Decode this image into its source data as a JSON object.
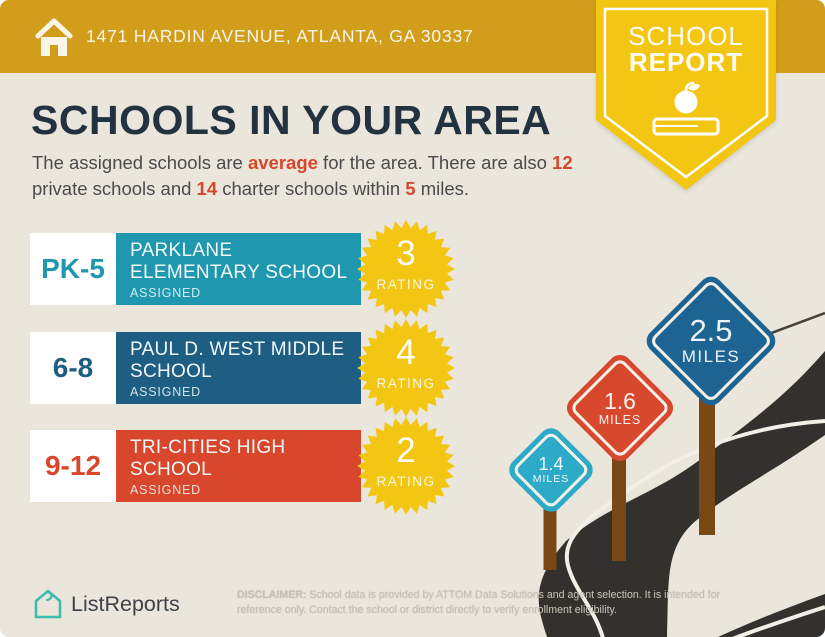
{
  "header": {
    "address": "1471 HARDIN AVENUE, ATLANTA, GA 30337"
  },
  "badge": {
    "line1": "SCHOOL",
    "line2": "REPORT"
  },
  "main": {
    "title": "SCHOOLS IN YOUR AREA",
    "intro": {
      "s1": "The assigned schools are ",
      "s2": "average",
      "s3": " for the area. There are also ",
      "s4": "12",
      "s5": " private schools and ",
      "s6": "14",
      "s7": " charter schools within ",
      "s8": "5",
      "s9": " miles."
    }
  },
  "schools": [
    {
      "grades": "PK-5",
      "name": "PARKLANE ELEMENTARY SCHOOL",
      "status": "ASSIGNED",
      "rating": "3",
      "rating_label": "RATING",
      "color": "#1f98af"
    },
    {
      "grades": "6-8",
      "name": "PAUL D. WEST MIDDLE SCHOOL",
      "status": "ASSIGNED",
      "rating": "4",
      "rating_label": "RATING",
      "color": "#1d5e82"
    },
    {
      "grades": "9-12",
      "name": "TRI-CITIES HIGH SCHOOL",
      "status": "ASSIGNED",
      "rating": "2",
      "rating_label": "RATING",
      "color": "#d8472b"
    }
  ],
  "distance_signs": [
    {
      "value": "1.4",
      "unit": "MILES",
      "color": "#2caac8"
    },
    {
      "value": "1.6",
      "unit": "MILES",
      "color": "#d8482c"
    },
    {
      "value": "2.5",
      "unit": "MILES",
      "color": "#1d6492"
    }
  ],
  "footer": {
    "brand": "ListReports",
    "disclaimer_label": "DISCLAIMER:",
    "disclaimer_text": " School data is provided by ATTOM Data Solutions and agent selection. It is intended for reference only. Contact the school or district directly to verify enrollment eligibility."
  },
  "icons": {
    "home": "home-icon",
    "badge_icon": "apple-on-book-icon",
    "brand_icon": "listreports-house-icon"
  },
  "colors": {
    "background": "#eae6dc",
    "header_gold": "#d19d1b",
    "badge_yellow": "#f3c613",
    "starburst_yellow": "#f3c613",
    "teal": "#1f98af",
    "sign_teal": "#2caac8",
    "navy_blue": "#1d5e82",
    "sign_blue": "#1d6492",
    "red_orange": "#d8472b",
    "title_navy": "#233240",
    "body_text": "#4b4b4b",
    "road": "#33312e",
    "post_brown": "#7a4815",
    "brand_teal": "#3cbfae"
  }
}
